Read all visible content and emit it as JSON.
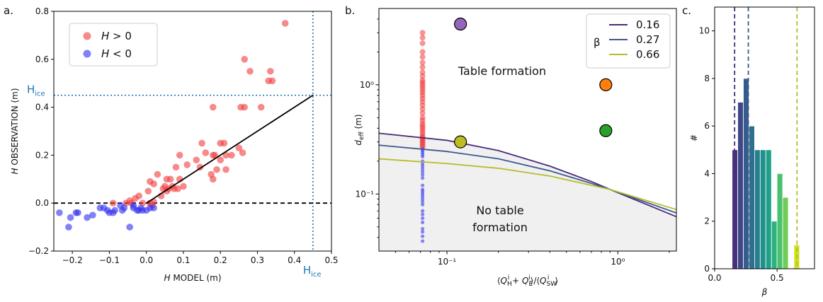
{
  "chart_data": [
    {
      "panel": "a.",
      "type": "scatter",
      "xlabel_var": "H",
      "xlabel_rest": " MODEL (m)",
      "ylabel_var": "H",
      "ylabel_rest": " OBSERVATION (m)",
      "xlim": [
        -0.25,
        0.5
      ],
      "ylim": [
        -0.2,
        0.8
      ],
      "xticks": [
        "−0.2",
        "−0.1",
        "0.0",
        "0.1",
        "0.2",
        "0.3",
        "0.4",
        "0.5"
      ],
      "xtick_values": [
        -0.2,
        -0.1,
        0.0,
        0.1,
        0.2,
        0.3,
        0.4,
        0.5
      ],
      "yticks": [
        "−0.2",
        "0.0",
        "0.2",
        "0.4",
        "0.6",
        "0.8"
      ],
      "ytick_values": [
        -0.2,
        0.0,
        0.2,
        0.4,
        0.6,
        0.8
      ],
      "hice_label": "H",
      "hice_sub": "ice",
      "hice_value": 0.45,
      "colors": {
        "positive": "#f03c3c",
        "negative": "#2e2ef0",
        "hice": "#1f77b4",
        "fit": "#000000"
      },
      "legend": [
        {
          "label_var": "H",
          "label_rest": " > 0",
          "color": "#f03c3c"
        },
        {
          "label_var": "H",
          "label_rest": " < 0",
          "color": "#2e2ef0"
        }
      ],
      "fit_line": [
        [
          0.0,
          0.0
        ],
        [
          0.45,
          0.45
        ]
      ],
      "zero_line": 0.0,
      "series": [
        {
          "key": "positive",
          "points": [
            [
              0.375,
              0.75
            ],
            [
              0.265,
              0.6
            ],
            [
              0.28,
              0.55
            ],
            [
              0.335,
              0.55
            ],
            [
              0.33,
              0.51
            ],
            [
              0.34,
              0.51
            ],
            [
              0.18,
              0.4
            ],
            [
              0.255,
              0.4
            ],
            [
              0.265,
              0.4
            ],
            [
              0.31,
              0.4
            ],
            [
              0.15,
              0.25
            ],
            [
              0.2,
              0.25
            ],
            [
              0.21,
              0.25
            ],
            [
              0.16,
              0.21
            ],
            [
              0.25,
              0.23
            ],
            [
              0.18,
              0.2
            ],
            [
              0.185,
              0.2
            ],
            [
              0.215,
              0.2
            ],
            [
              0.23,
              0.2
            ],
            [
              0.26,
              0.21
            ],
            [
              0.09,
              0.2
            ],
            [
              0.135,
              0.18
            ],
            [
              0.2,
              0.18
            ],
            [
              0.145,
              0.15
            ],
            [
              0.19,
              0.14
            ],
            [
              0.11,
              0.16
            ],
            [
              0.08,
              0.15
            ],
            [
              0.215,
              0.14
            ],
            [
              0.175,
              0.12
            ],
            [
              0.18,
              0.1
            ],
            [
              0.03,
              0.12
            ],
            [
              0.09,
              0.1
            ],
            [
              0.055,
              0.1
            ],
            [
              0.065,
              0.1
            ],
            [
              0.01,
              0.09
            ],
            [
              0.02,
              0.08
            ],
            [
              0.05,
              0.07
            ],
            [
              0.07,
              0.07
            ],
            [
              0.1,
              0.07
            ],
            [
              0.085,
              0.06
            ],
            [
              0.06,
              0.06
            ],
            [
              0.055,
              0.05
            ],
            [
              0.045,
              0.06
            ],
            [
              0.075,
              0.06
            ],
            [
              0.04,
              0.03
            ],
            [
              0.005,
              0.05
            ],
            [
              -0.02,
              0.03
            ],
            [
              -0.045,
              0.01
            ],
            [
              -0.03,
              0.02
            ],
            [
              -0.04,
              0.0
            ],
            [
              -0.055,
              0.0
            ],
            [
              -0.01,
              0.0
            ],
            [
              -0.09,
              0.0
            ],
            [
              0.01,
              0.0
            ],
            [
              0.015,
              -0.01
            ],
            [
              0.02,
              0.005
            ]
          ]
        },
        {
          "key": "negative",
          "points": [
            [
              -0.235,
              -0.04
            ],
            [
              -0.21,
              -0.1
            ],
            [
              -0.205,
              -0.06
            ],
            [
              -0.19,
              -0.04
            ],
            [
              -0.185,
              -0.04
            ],
            [
              -0.16,
              -0.06
            ],
            [
              -0.145,
              -0.05
            ],
            [
              -0.125,
              -0.02
            ],
            [
              -0.115,
              -0.02
            ],
            [
              -0.105,
              -0.03
            ],
            [
              -0.1,
              -0.04
            ],
            [
              -0.09,
              -0.04
            ],
            [
              -0.085,
              -0.03
            ],
            [
              -0.065,
              -0.03
            ],
            [
              -0.06,
              -0.02
            ],
            [
              -0.045,
              -0.1
            ],
            [
              -0.035,
              -0.02
            ],
            [
              -0.025,
              -0.03
            ],
            [
              -0.02,
              -0.03
            ],
            [
              -0.015,
              -0.02
            ],
            [
              -0.01,
              -0.03
            ],
            [
              0.0,
              -0.03
            ],
            [
              0.01,
              -0.02
            ],
            [
              0.02,
              -0.02
            ],
            [
              -0.07,
              -0.01
            ],
            [
              -0.035,
              -0.01
            ]
          ]
        }
      ]
    },
    {
      "panel": "b.",
      "type": "scatter",
      "xscale": "log",
      "yscale": "log",
      "xlim": [
        0.04,
        2.2
      ],
      "ylim": [
        0.03,
        5.0
      ],
      "xlabel": "⟨Q_H^i + Q_E^i⟩/⟨Q_SW^i⟩",
      "ylabel": "d_eff (m)",
      "xticks": [
        "10⁻¹",
        "10⁰"
      ],
      "xtick_values": [
        0.1,
        1.0
      ],
      "yticks": [
        "10⁻¹",
        "10⁰"
      ],
      "ytick_values": [
        0.1,
        1.0
      ],
      "regions": {
        "upper": "Table formation",
        "lower_line1": "No table",
        "lower_line2": "formation"
      },
      "legend_title": "β",
      "curves": [
        {
          "name": "0.16",
          "color": "#472c7a",
          "points": [
            [
              0.04,
              0.36
            ],
            [
              0.1,
              0.31
            ],
            [
              0.2,
              0.25
            ],
            [
              0.4,
              0.18
            ],
            [
              0.7,
              0.13
            ],
            [
              0.9,
              0.11
            ],
            [
              2.2,
              0.062
            ]
          ]
        },
        {
          "name": "0.27",
          "color": "#3b5a8c",
          "points": [
            [
              0.04,
              0.28
            ],
            [
              0.1,
              0.245
            ],
            [
              0.2,
              0.21
            ],
            [
              0.4,
              0.163
            ],
            [
              0.7,
              0.125
            ],
            [
              0.9,
              0.11
            ],
            [
              2.2,
              0.067
            ]
          ]
        },
        {
          "name": "0.66",
          "color": "#b5bd2c",
          "points": [
            [
              0.04,
              0.21
            ],
            [
              0.1,
              0.19
            ],
            [
              0.2,
              0.172
            ],
            [
              0.4,
              0.146
            ],
            [
              0.7,
              0.12
            ],
            [
              0.9,
              0.11
            ],
            [
              2.2,
              0.072
            ]
          ]
        }
      ],
      "column_x": 0.072,
      "column_red_points": [
        3.0,
        2.7,
        2.4,
        2.0,
        1.8,
        1.6,
        1.45,
        1.3,
        1.2,
        1.1,
        1.05,
        1.0,
        0.95,
        0.9,
        0.85,
        0.8,
        0.75,
        0.7,
        0.65,
        0.6,
        0.55,
        0.5,
        0.47,
        0.44,
        0.42,
        0.4,
        0.38,
        0.36,
        0.34,
        0.33,
        0.32,
        0.31,
        0.3,
        0.29,
        0.28,
        0.27
      ],
      "column_blue_points": [
        0.26,
        0.25,
        0.24,
        0.23,
        0.22,
        0.2,
        0.19,
        0.18,
        0.17,
        0.16,
        0.15,
        0.14,
        0.12,
        0.11,
        0.105,
        0.1,
        0.095,
        0.09,
        0.085,
        0.08,
        0.07,
        0.065,
        0.06,
        0.055,
        0.048,
        0.045,
        0.041,
        0.037
      ],
      "colors": {
        "column_red": "#f03c3c",
        "column_blue": "#2e2ef0",
        "below_fill": "#f0f0f0"
      },
      "markers": [
        {
          "x": 0.12,
          "y": 3.6,
          "color": "#9467bd"
        },
        {
          "x": 0.12,
          "y": 0.3,
          "color": "#bcbd22"
        },
        {
          "x": 0.85,
          "y": 1.0,
          "color": "#ff7f0e"
        },
        {
          "x": 0.85,
          "y": 0.38,
          "color": "#2ca02c"
        }
      ]
    },
    {
      "panel": "c.",
      "type": "bar",
      "xlabel": "β",
      "ylabel": "#",
      "xlim": [
        0.0,
        0.8
      ],
      "ylim": [
        0,
        11
      ],
      "xticks": [
        "0.0",
        "0.5"
      ],
      "xtick_values": [
        0.0,
        0.5
      ],
      "yticks": [
        "0",
        "2",
        "4",
        "6",
        "8",
        "10"
      ],
      "ytick_values": [
        0,
        2,
        4,
        6,
        8,
        10
      ],
      "bins": [
        {
          "from": 0.14,
          "to": 0.185,
          "count": 5,
          "color": "#46327e"
        },
        {
          "from": 0.185,
          "to": 0.23,
          "count": 7,
          "color": "#3f4788"
        },
        {
          "from": 0.23,
          "to": 0.275,
          "count": 8,
          "color": "#365c8d"
        },
        {
          "from": 0.275,
          "to": 0.32,
          "count": 6,
          "color": "#2e6f8e"
        },
        {
          "from": 0.32,
          "to": 0.365,
          "count": 5,
          "color": "#277f8e"
        },
        {
          "from": 0.365,
          "to": 0.41,
          "count": 5,
          "color": "#21918c"
        },
        {
          "from": 0.41,
          "to": 0.455,
          "count": 5,
          "color": "#1fa187"
        },
        {
          "from": 0.455,
          "to": 0.5,
          "count": 2,
          "color": "#2db27d"
        },
        {
          "from": 0.5,
          "to": 0.545,
          "count": 4,
          "color": "#4ac16d"
        },
        {
          "from": 0.545,
          "to": 0.59,
          "count": 3,
          "color": "#6ece58"
        },
        {
          "from": 0.59,
          "to": 0.635,
          "count": 0,
          "color": "#9fda3a"
        },
        {
          "from": 0.635,
          "to": 0.68,
          "count": 1,
          "color": "#cde11d"
        }
      ],
      "vlines": [
        {
          "x": 0.16,
          "color": "#472c7a"
        },
        {
          "x": 0.27,
          "color": "#3b5a8c"
        },
        {
          "x": 0.66,
          "color": "#b5bd2c"
        }
      ]
    }
  ]
}
